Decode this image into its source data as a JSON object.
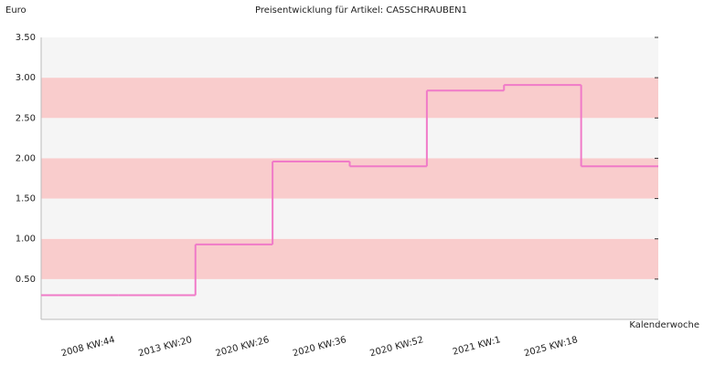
{
  "chart_data": {
    "type": "step",
    "title": "Preisentwicklung für Artikel: CASSCHRAUBEN1",
    "y_label": "Euro",
    "x_label": "Kalenderwoche",
    "categories": [
      "2008 KW:44",
      "2013 KW:20",
      "2020 KW:26",
      "2020 KW:36",
      "2020 KW:52",
      "2021 KW:1",
      "2025 KW:18",
      null
    ],
    "values": [
      0.3,
      0.3,
      0.93,
      1.96,
      1.9,
      2.84,
      2.91,
      1.9
    ],
    "color": "#f07ac8",
    "ylim": [
      0,
      3.5
    ],
    "yticks": [
      {
        "value": 0.5,
        "label": "0.50"
      },
      {
        "value": 1,
        "label": "1.00"
      },
      {
        "value": 1.5,
        "label": "1.50"
      },
      {
        "value": 2,
        "label": "2.00"
      },
      {
        "value": 2.5,
        "label": "2.50"
      },
      {
        "value": 3,
        "label": "3.00"
      },
      {
        "value": 3.5,
        "label": "3.50"
      }
    ]
  }
}
